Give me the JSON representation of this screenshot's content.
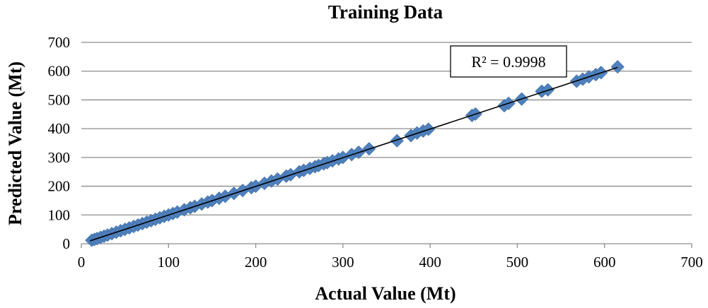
{
  "chart_data": {
    "type": "scatter",
    "title": "Training Data",
    "xlabel": "Actual Value (Mt)",
    "ylabel": "Predicted Value (Mt)",
    "xlim": [
      0,
      700
    ],
    "ylim": [
      0,
      700
    ],
    "xticks": [
      "0",
      "100",
      "200",
      "300",
      "400",
      "500",
      "600",
      "700"
    ],
    "yticks": [
      "0",
      "100",
      "200",
      "300",
      "400",
      "500",
      "600",
      "700"
    ],
    "grid": true,
    "marker": "diamond",
    "marker_color": "#4f81bd",
    "trendline": {
      "from": [
        10,
        10
      ],
      "to": [
        615,
        613
      ]
    },
    "annotation": "R² = 0.9998",
    "series": [
      {
        "x": [
          12,
          15,
          18,
          22,
          26,
          30,
          35,
          40,
          45,
          50,
          55,
          60,
          65,
          70,
          75,
          80,
          85,
          90,
          95,
          100,
          105,
          110,
          118,
          125,
          130,
          138,
          145,
          150,
          158,
          165,
          175,
          185,
          195,
          200,
          210,
          218,
          225,
          235,
          240,
          250,
          255,
          262,
          268,
          272,
          278,
          282,
          288,
          295,
          300,
          310,
          318,
          330,
          362,
          378,
          385,
          392,
          398,
          448,
          452,
          485,
          490,
          505,
          528,
          535,
          568,
          575,
          582,
          590,
          596,
          615
        ],
        "y": [
          12,
          15,
          18,
          22,
          26,
          30,
          35,
          40,
          45,
          50,
          55,
          60,
          65,
          70,
          75,
          80,
          85,
          90,
          95,
          100,
          105,
          110,
          118,
          125,
          130,
          138,
          145,
          150,
          158,
          165,
          175,
          185,
          195,
          200,
          210,
          218,
          225,
          235,
          240,
          250,
          255,
          262,
          268,
          272,
          278,
          282,
          288,
          295,
          300,
          310,
          318,
          330,
          358,
          376,
          385,
          392,
          398,
          446,
          451,
          480,
          488,
          503,
          530,
          535,
          565,
          572,
          580,
          588,
          595,
          615
        ]
      }
    ]
  }
}
